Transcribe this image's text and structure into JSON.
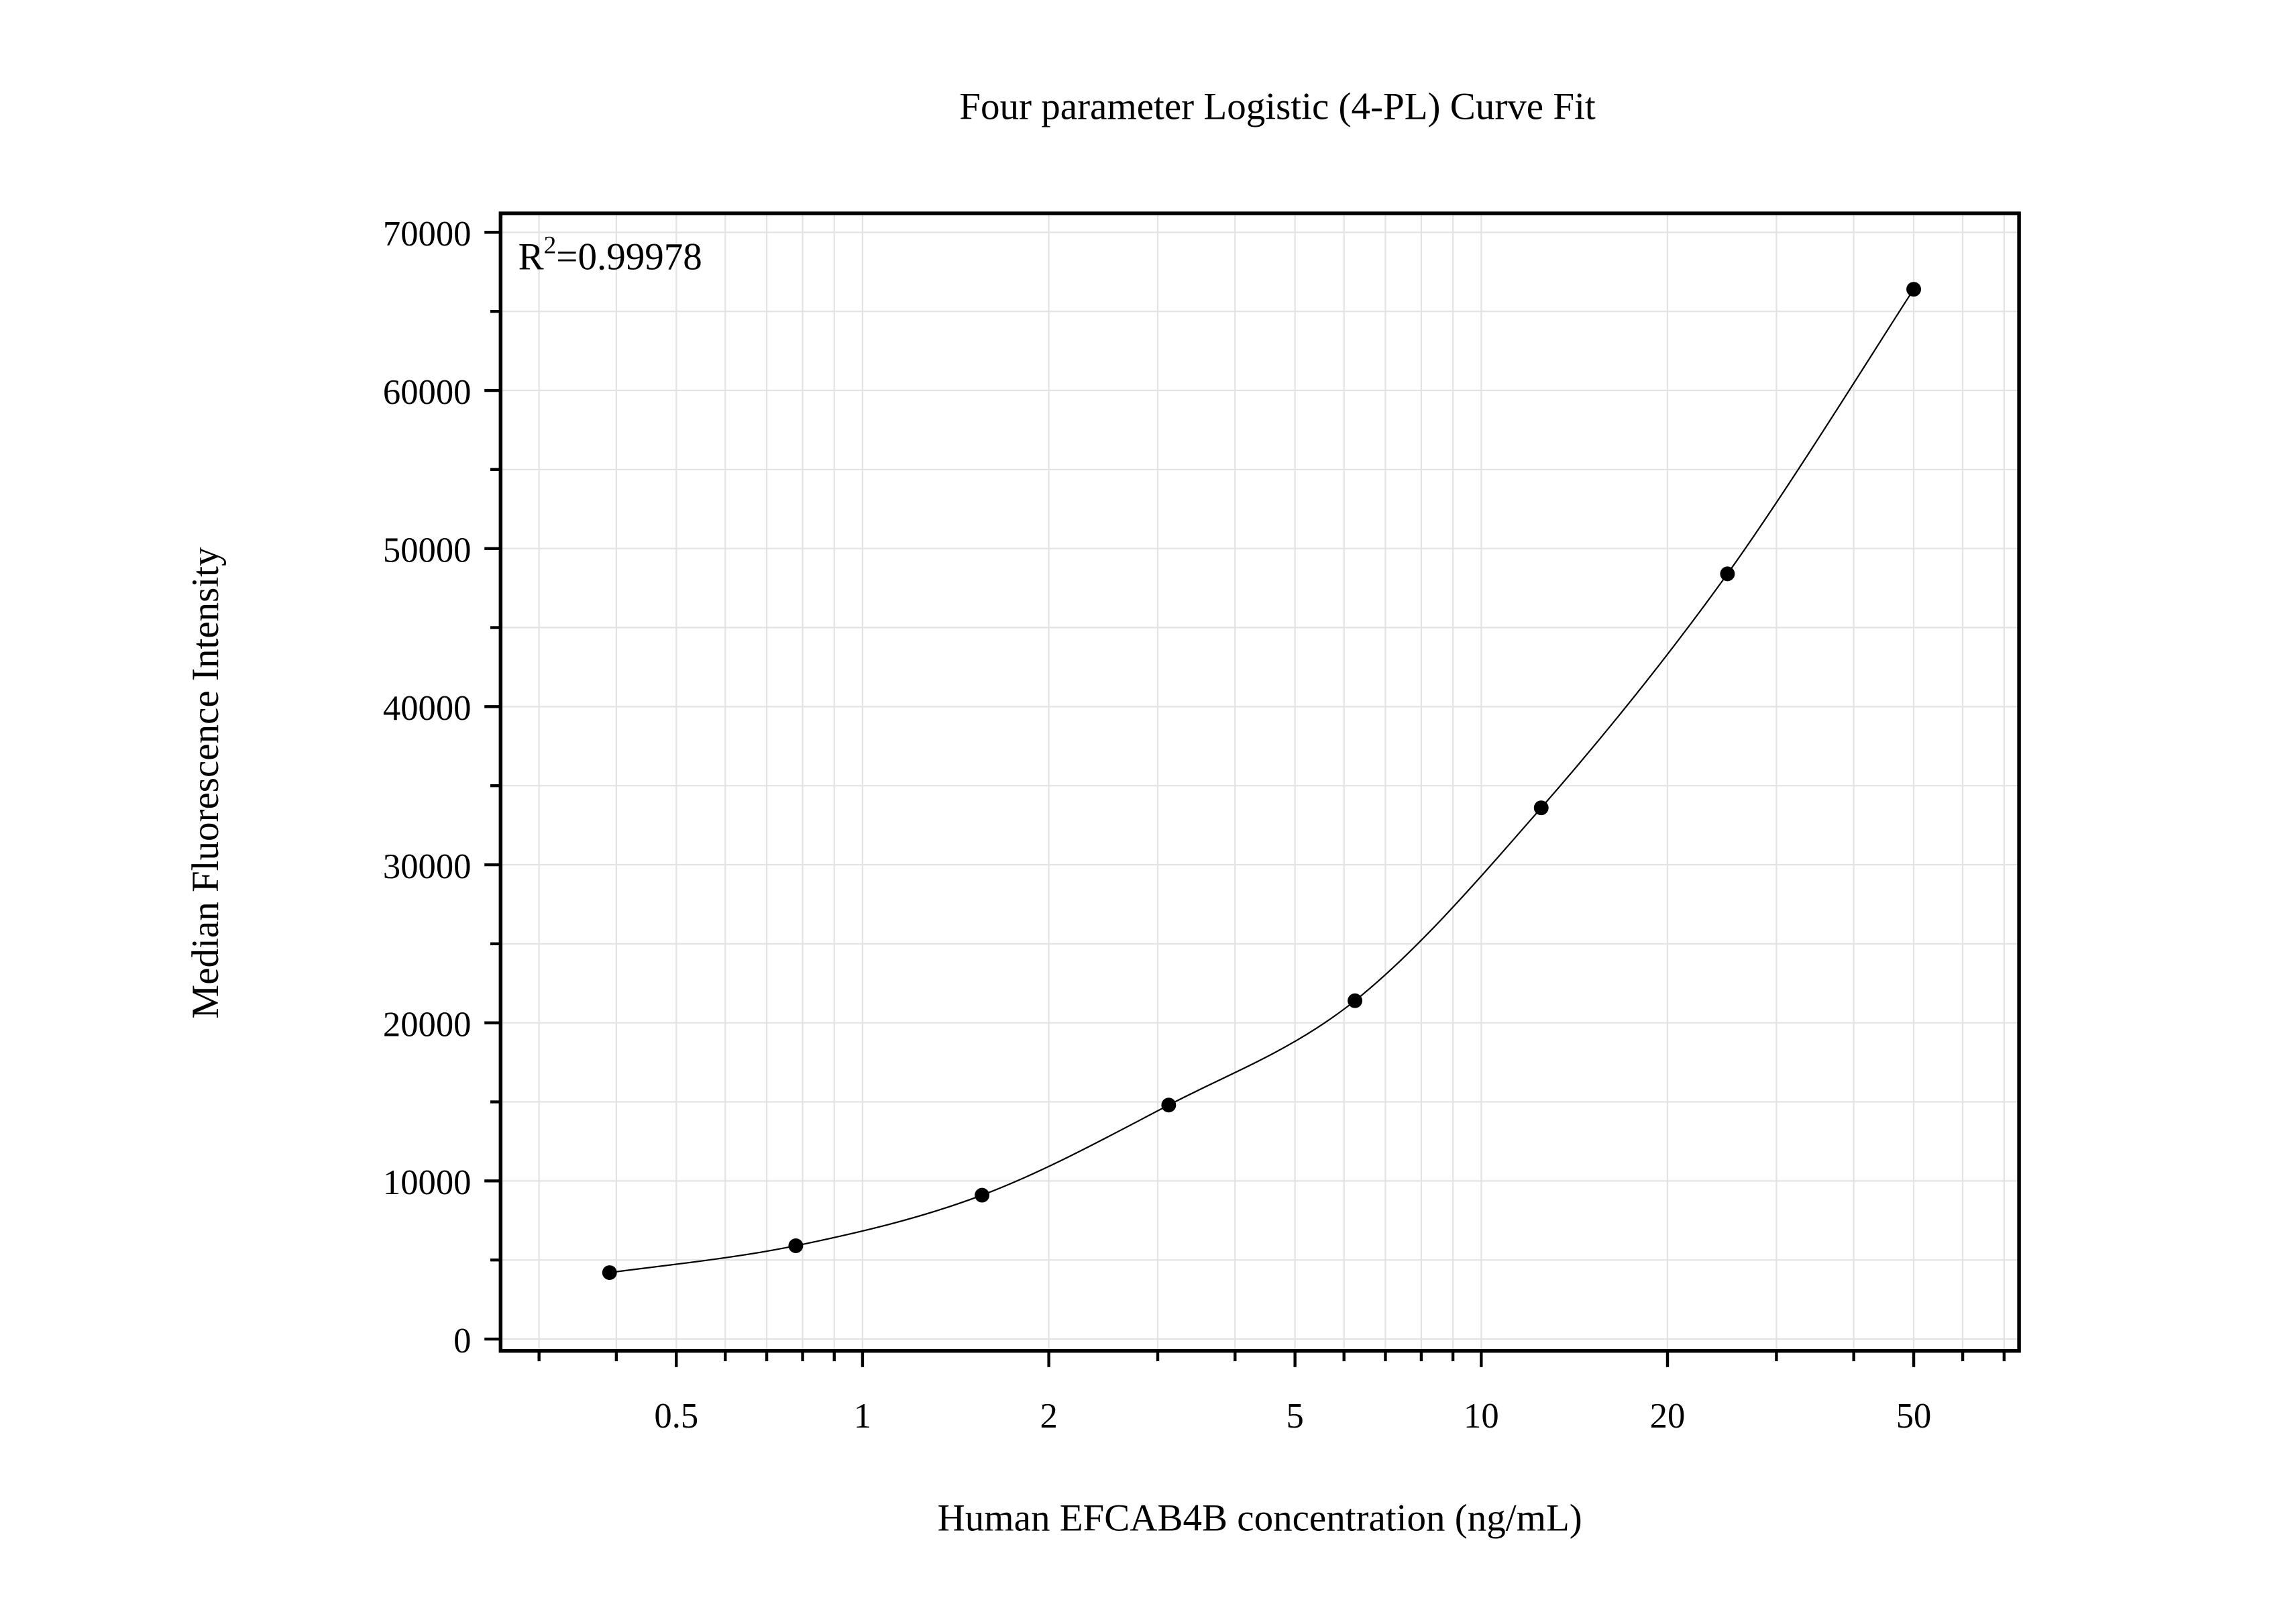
{
  "chart_data": {
    "type": "scatter",
    "title": "Four parameter Logistic (4-PL) Curve Fit",
    "xlabel": "Human EFCAB4B concentration (ng/mL)",
    "ylabel": "Median Fluorescence Intensity",
    "annotation": {
      "prefix": "R",
      "sup": "2",
      "value": "=0.99978"
    },
    "x_scale": "log",
    "xlim": [
      0.26,
      74
    ],
    "ylim": [
      -750,
      71200
    ],
    "x_ticks": [
      0.5,
      1,
      2,
      5,
      10,
      20,
      50
    ],
    "x_tick_labels": [
      "0.5",
      "1",
      "2",
      "5",
      "10",
      "20",
      "50"
    ],
    "y_ticks": [
      0,
      10000,
      20000,
      30000,
      40000,
      50000,
      60000,
      70000
    ],
    "y_tick_labels": [
      "0",
      "10000",
      "20000",
      "30000",
      "40000",
      "50000",
      "60000",
      "70000"
    ],
    "grid": true,
    "fit": "4-PL curve",
    "points": {
      "x": [
        0.39,
        0.78,
        1.56,
        3.125,
        6.25,
        12.5,
        25,
        50
      ],
      "y": [
        4200,
        5900,
        9100,
        14800,
        21400,
        33600,
        48400,
        66400
      ]
    },
    "colors": {
      "points": "#000000",
      "curve": "#000000",
      "grid": "#e3e3e3"
    }
  }
}
